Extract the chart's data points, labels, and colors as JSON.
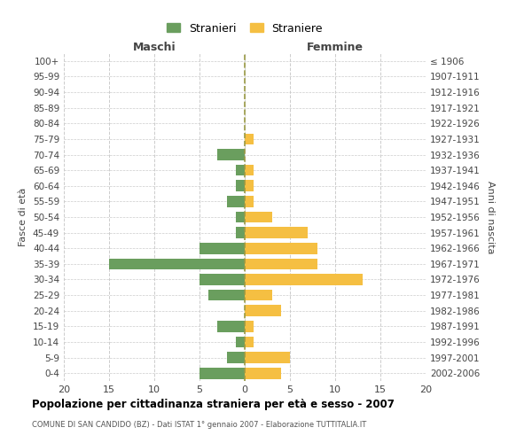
{
  "age_groups": [
    "0-4",
    "5-9",
    "10-14",
    "15-19",
    "20-24",
    "25-29",
    "30-34",
    "35-39",
    "40-44",
    "45-49",
    "50-54",
    "55-59",
    "60-64",
    "65-69",
    "70-74",
    "75-79",
    "80-84",
    "85-89",
    "90-94",
    "95-99",
    "100+"
  ],
  "birth_years": [
    "2002-2006",
    "1997-2001",
    "1992-1996",
    "1987-1991",
    "1982-1986",
    "1977-1981",
    "1972-1976",
    "1967-1971",
    "1962-1966",
    "1957-1961",
    "1952-1956",
    "1947-1951",
    "1942-1946",
    "1937-1941",
    "1932-1936",
    "1927-1931",
    "1922-1926",
    "1917-1921",
    "1912-1916",
    "1907-1911",
    "≤ 1906"
  ],
  "males": [
    5,
    2,
    1,
    3,
    0,
    4,
    5,
    15,
    5,
    1,
    1,
    2,
    1,
    1,
    3,
    0,
    0,
    0,
    0,
    0,
    0
  ],
  "females": [
    4,
    5,
    1,
    1,
    4,
    3,
    13,
    8,
    8,
    7,
    3,
    1,
    1,
    1,
    0,
    1,
    0,
    0,
    0,
    0,
    0
  ],
  "male_color": "#6a9e5e",
  "female_color": "#f5bf42",
  "title": "Popolazione per cittadinanza straniera per età e sesso - 2007",
  "subtitle": "COMUNE DI SAN CANDIDO (BZ) - Dati ISTAT 1° gennaio 2007 - Elaborazione TUTTITALIA.IT",
  "ylabel_left": "Fasce di età",
  "ylabel_right": "Anni di nascita",
  "xlabel_left": "Maschi",
  "xlabel_right": "Femmine",
  "legend_stranieri": "Stranieri",
  "legend_straniere": "Straniere",
  "xlim": 20,
  "bg_color": "#ffffff",
  "grid_color": "#cccccc"
}
